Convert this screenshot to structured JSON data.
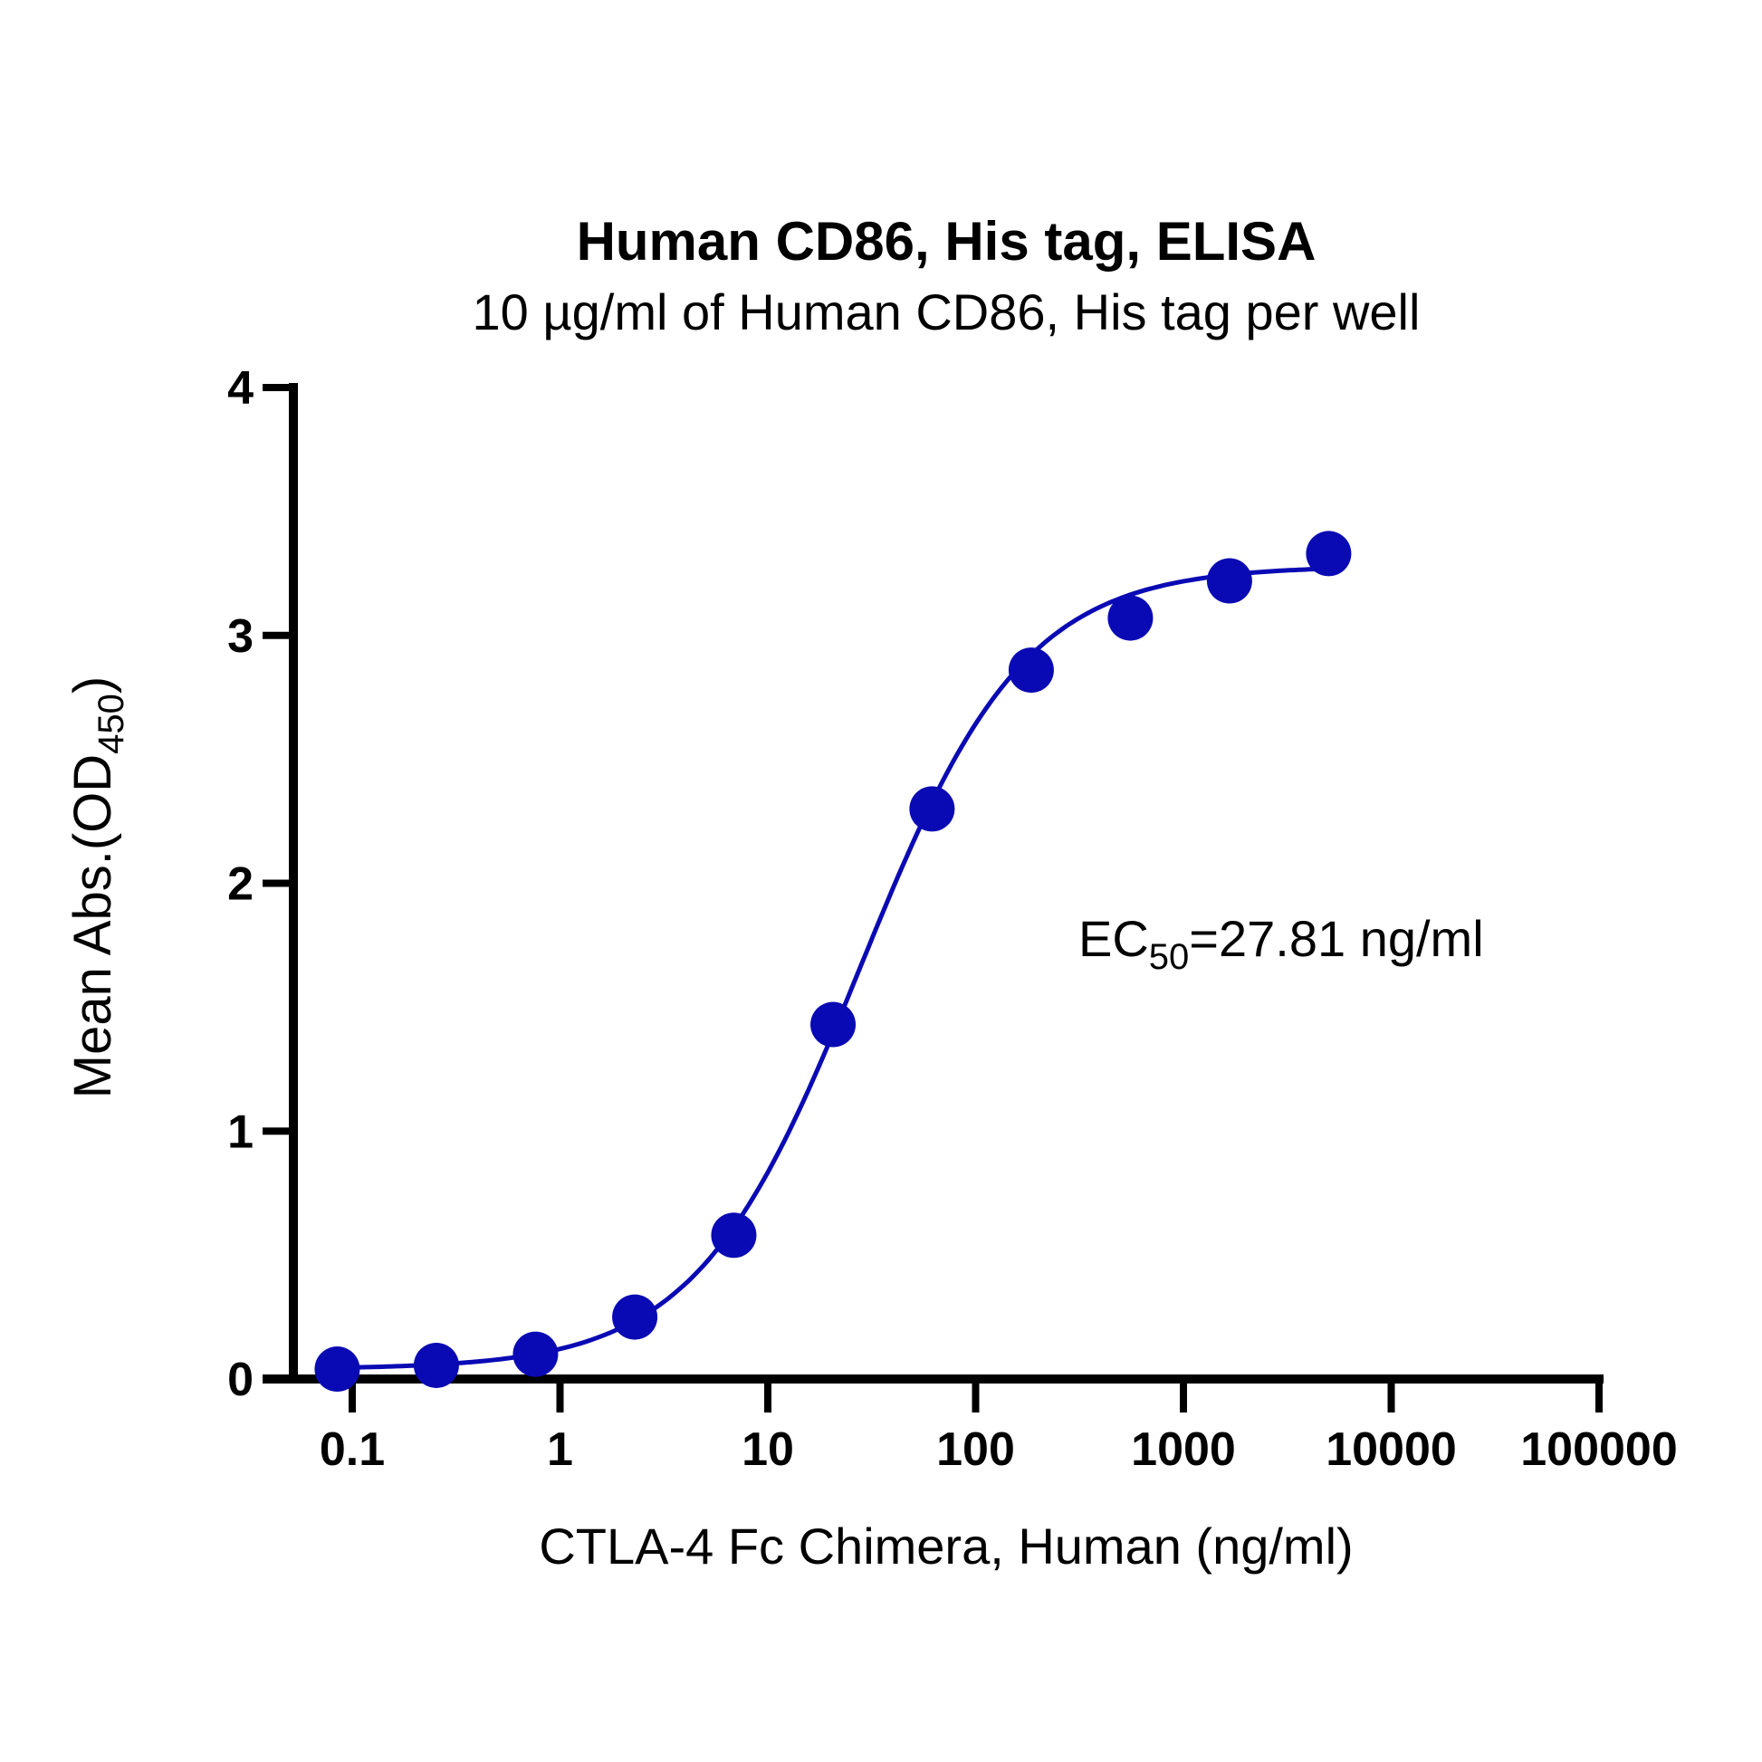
{
  "chart_data": {
    "type": "scatter",
    "title": "Human CD86, His tag, ELISA",
    "subtitle": "10 µg/ml of Human CD86, His tag per well",
    "xlabel": "CTLA-4 Fc Chimera, Human (ng/ml)",
    "ylabel_main": "Mean Abs.(OD",
    "ylabel_sub": "450",
    "ylabel_end": ")",
    "xscale": "log",
    "xlim": [
      0.1,
      100000
    ],
    "ylim": [
      0,
      4
    ],
    "xticks": [
      "0.1",
      "1",
      "10",
      "100",
      "1000",
      "10000",
      "100000"
    ],
    "yticks": [
      "0",
      "1",
      "2",
      "3",
      "4"
    ],
    "annotation": {
      "prefix": "EC",
      "sub": "50",
      "suffix": "=27.81 ng/ml"
    },
    "color": "#0a0ab4",
    "series": [
      {
        "name": "CTLA-4 Fc Chimera, Human",
        "x": [
          0.0847,
          0.254,
          0.762,
          2.29,
          6.86,
          20.6,
          61.7,
          185.2,
          555.6,
          1666.7,
          5000
        ],
        "y": [
          0.04,
          0.055,
          0.1,
          0.25,
          0.58,
          1.43,
          2.3,
          2.86,
          3.07,
          3.22,
          3.33
        ]
      }
    ],
    "fit": {
      "model": "4PL",
      "bottom": 0.04,
      "top": 3.28,
      "ec50": 27.81,
      "hill": 1.1
    }
  }
}
